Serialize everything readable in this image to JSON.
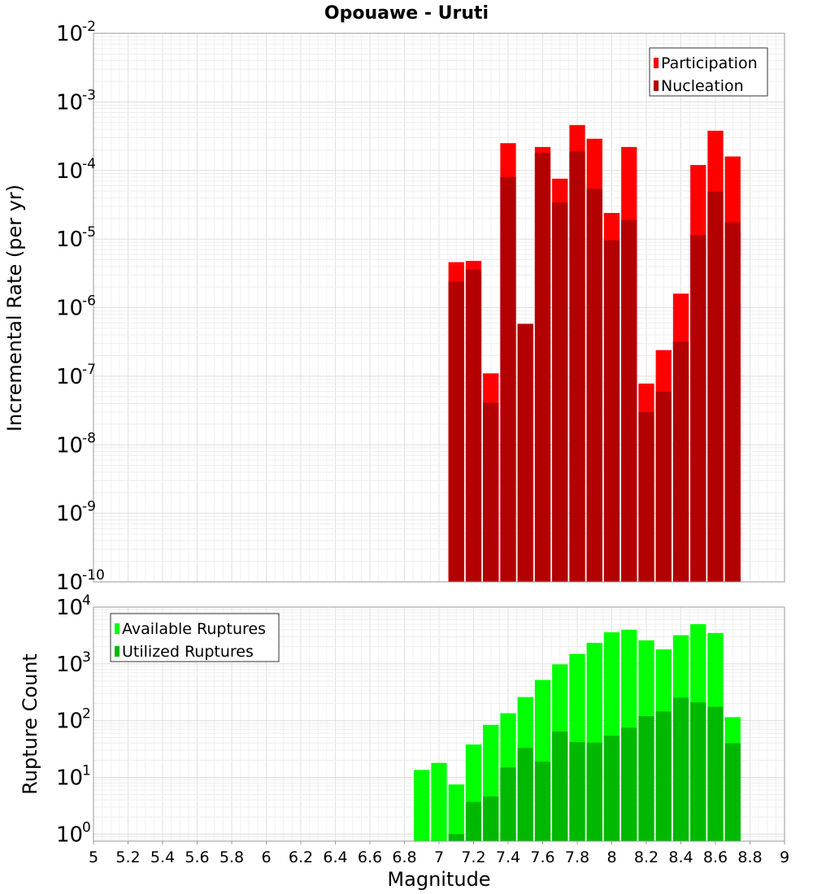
{
  "title": "Opouawe - Uruti",
  "chart_data": [
    {
      "type": "bar",
      "name": "rate-panel",
      "xlabel": "Magnitude",
      "ylabel": "Incremental Rate (per yr)",
      "yscale": "log",
      "ylim": [
        1e-10,
        0.01
      ],
      "xlim": [
        5,
        9
      ],
      "grid": true,
      "legend_position": "top-right",
      "bin_width": 0.1,
      "x": [
        7.1,
        7.2,
        7.3,
        7.4,
        7.5,
        7.6,
        7.7,
        7.8,
        7.9,
        8.0,
        8.1,
        8.2,
        8.3,
        8.4,
        8.5,
        8.6,
        8.7
      ],
      "series": [
        {
          "name": "Participation",
          "color": "#ff0000",
          "values": [
            4.6e-06,
            4.8e-06,
            1.1e-07,
            0.00025,
            5.8e-07,
            0.00022,
            7.6e-05,
            0.00046,
            0.00029,
            2.4e-05,
            0.00022,
            7.8e-08,
            2.4e-07,
            1.6e-06,
            0.00012,
            0.00038,
            0.00016
          ]
        },
        {
          "name": "Nucleation",
          "color": "#b30000",
          "values": [
            2.4e-06,
            3.6e-06,
            4.1e-08,
            8e-05,
            5.8e-07,
            0.00018,
            3.4e-05,
            0.00019,
            5.4e-05,
            9.6e-06,
            1.9e-05,
            3e-08,
            5.9e-08,
            3.2e-07,
            1.15e-05,
            4.9e-05,
            1.75e-05
          ]
        }
      ]
    },
    {
      "type": "bar",
      "name": "count-panel",
      "xlabel": "Magnitude",
      "ylabel": "Rupture Count",
      "yscale": "log",
      "ylim": [
        0.75,
        10000
      ],
      "xlim": [
        5,
        9
      ],
      "grid": true,
      "legend_position": "top-left",
      "bin_width": 0.1,
      "x": [
        6.9,
        7.0,
        7.1,
        7.2,
        7.3,
        7.4,
        7.5,
        7.6,
        7.7,
        7.8,
        7.9,
        8.0,
        8.1,
        8.2,
        8.3,
        8.4,
        8.5,
        8.6,
        8.7
      ],
      "series": [
        {
          "name": "Available Ruptures",
          "color": "#00ff00",
          "values": [
            13.5,
            18,
            7.5,
            38,
            84,
            135,
            260,
            520,
            980,
            1500,
            2350,
            3600,
            4000,
            2600,
            1800,
            3200,
            5000,
            3500,
            115
          ]
        },
        {
          "name": "Utilized Ruptures",
          "color": "#00b800",
          "values": [
            null,
            null,
            1,
            3.7,
            4.6,
            15,
            33,
            19,
            64,
            42,
            41,
            54,
            75,
            120,
            145,
            255,
            210,
            175,
            40
          ]
        }
      ]
    }
  ],
  "axis_ticks": {
    "x": [
      "5",
      "5.2",
      "5.4",
      "5.6",
      "5.8",
      "6",
      "6.2",
      "6.4",
      "6.6",
      "6.8",
      "7",
      "7.2",
      "7.4",
      "7.6",
      "7.8",
      "8",
      "8.2",
      "8.4",
      "8.6",
      "8.8",
      "9"
    ],
    "rate_y_base": "10",
    "rate_y_exponents": [
      "-2",
      "-3",
      "-4",
      "-5",
      "-6",
      "-7",
      "-8",
      "-9",
      "-10"
    ],
    "count_y_base": "10",
    "count_y_exponents": [
      "4",
      "3",
      "2",
      "1",
      "0"
    ]
  }
}
